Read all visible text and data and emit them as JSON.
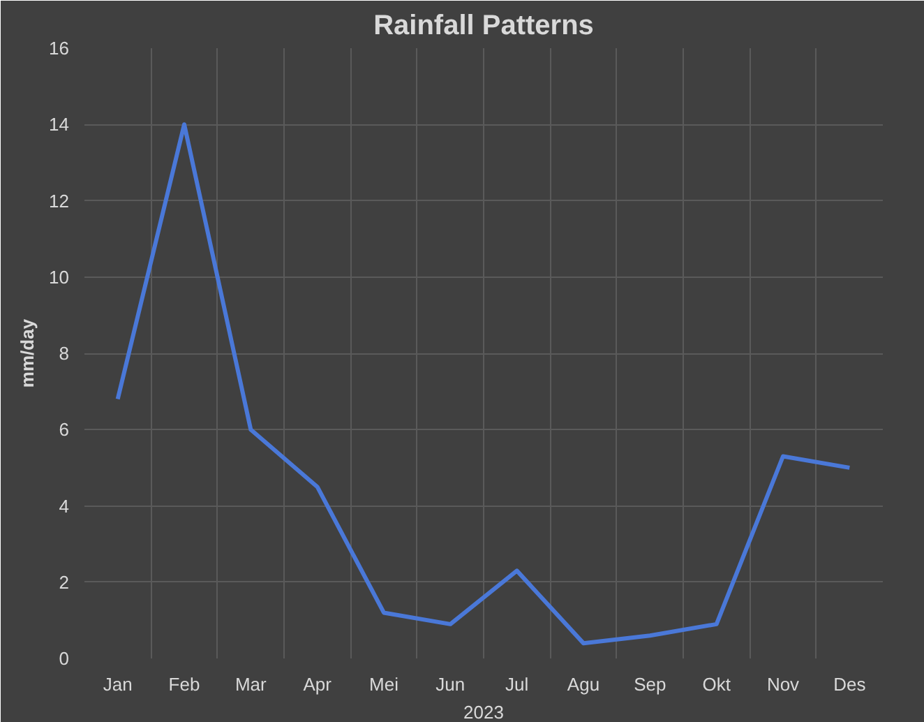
{
  "chart_data": {
    "type": "line",
    "title": "Rainfall Patterns",
    "xlabel": "2023",
    "ylabel": "mm/day",
    "categories": [
      "Jan",
      "Feb",
      "Mar",
      "Apr",
      "Mei",
      "Jun",
      "Jul",
      "Agu",
      "Sep",
      "Okt",
      "Nov",
      "Des"
    ],
    "series": [
      {
        "color": "#4a78d8",
        "values": [
          6.8,
          14,
          6,
          4.5,
          1.2,
          0.9,
          2.3,
          0.4,
          0.6,
          0.9,
          5.3,
          5.0
        ]
      }
    ],
    "ylim": [
      0,
      16
    ],
    "yticks": [
      0,
      2,
      4,
      6,
      8,
      10,
      12,
      14,
      16
    ],
    "grid": true,
    "marker": "none",
    "line_style": "solid"
  }
}
